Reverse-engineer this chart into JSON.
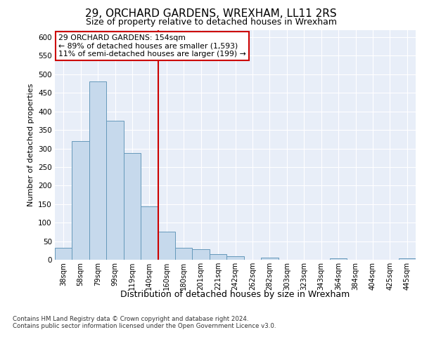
{
  "title": "29, ORCHARD GARDENS, WREXHAM, LL11 2RS",
  "subtitle": "Size of property relative to detached houses in Wrexham",
  "xlabel": "Distribution of detached houses by size in Wrexham",
  "ylabel": "Number of detached properties",
  "bar_color": "#c6d9ec",
  "bar_edge_color": "#6699bb",
  "categories": [
    "38sqm",
    "58sqm",
    "79sqm",
    "99sqm",
    "119sqm",
    "140sqm",
    "160sqm",
    "180sqm",
    "201sqm",
    "221sqm",
    "242sqm",
    "262sqm",
    "282sqm",
    "303sqm",
    "323sqm",
    "343sqm",
    "364sqm",
    "384sqm",
    "404sqm",
    "425sqm",
    "445sqm"
  ],
  "values": [
    32,
    320,
    480,
    375,
    288,
    143,
    75,
    32,
    28,
    15,
    9,
    0,
    5,
    0,
    0,
    0,
    4,
    0,
    0,
    0,
    4
  ],
  "property_line_color": "#cc0000",
  "property_line_x": 5.5,
  "annotation_line1": "29 ORCHARD GARDENS: 154sqm",
  "annotation_line2": "← 89% of detached houses are smaller (1,593)",
  "annotation_line3": "11% of semi-detached houses are larger (199) →",
  "ylim_max": 620,
  "yticks": [
    0,
    50,
    100,
    150,
    200,
    250,
    300,
    350,
    400,
    450,
    500,
    550,
    600
  ],
  "footer_line1": "Contains HM Land Registry data © Crown copyright and database right 2024.",
  "footer_line2": "Contains public sector information licensed under the Open Government Licence v3.0.",
  "background_color": "#e8eef8",
  "grid_color": "#ffffff"
}
